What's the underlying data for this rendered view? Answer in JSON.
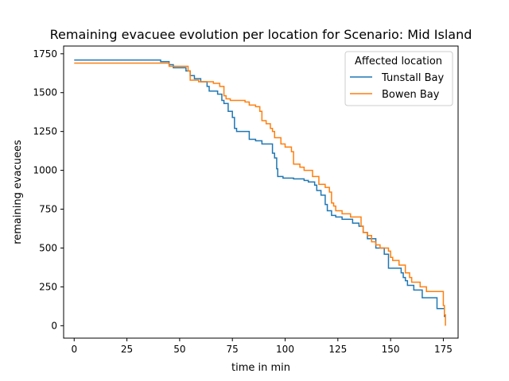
{
  "chart_data": {
    "type": "line",
    "title": "Remaining evacuee evolution per location for Scenario: Mid Island",
    "xlabel": "time in min",
    "ylabel": "remaining evacuees",
    "xlim": [
      -5,
      182
    ],
    "ylim": [
      -80,
      1800
    ],
    "xticks": [
      0,
      25,
      50,
      75,
      100,
      125,
      150,
      175
    ],
    "yticks": [
      0,
      250,
      500,
      750,
      1000,
      1250,
      1500,
      1750
    ],
    "grid": false,
    "step": "post",
    "legend": {
      "title": "Affected location",
      "position": "top-right"
    },
    "series": [
      {
        "name": "Tunstall Bay",
        "color": "#1f77b4",
        "points": [
          [
            0,
            1710
          ],
          [
            41,
            1710
          ],
          [
            41,
            1700
          ],
          [
            45,
            1700
          ],
          [
            45,
            1680
          ],
          [
            47,
            1680
          ],
          [
            47,
            1660
          ],
          [
            53,
            1660
          ],
          [
            53,
            1640
          ],
          [
            55,
            1640
          ],
          [
            55,
            1610
          ],
          [
            57,
            1610
          ],
          [
            57,
            1590
          ],
          [
            60,
            1590
          ],
          [
            60,
            1570
          ],
          [
            63,
            1570
          ],
          [
            63,
            1540
          ],
          [
            64,
            1540
          ],
          [
            64,
            1510
          ],
          [
            68,
            1510
          ],
          [
            68,
            1490
          ],
          [
            70,
            1490
          ],
          [
            70,
            1450
          ],
          [
            71,
            1450
          ],
          [
            71,
            1430
          ],
          [
            73,
            1430
          ],
          [
            73,
            1380
          ],
          [
            75,
            1380
          ],
          [
            75,
            1340
          ],
          [
            76,
            1340
          ],
          [
            76,
            1270
          ],
          [
            77,
            1270
          ],
          [
            77,
            1250
          ],
          [
            83,
            1250
          ],
          [
            83,
            1200
          ],
          [
            86,
            1200
          ],
          [
            86,
            1190
          ],
          [
            89,
            1190
          ],
          [
            89,
            1170
          ],
          [
            94,
            1170
          ],
          [
            94,
            1110
          ],
          [
            95,
            1110
          ],
          [
            95,
            1080
          ],
          [
            96,
            1080
          ],
          [
            96,
            1010
          ],
          [
            96.5,
            1010
          ],
          [
            96.5,
            960
          ],
          [
            99,
            960
          ],
          [
            99,
            950
          ],
          [
            104,
            950
          ],
          [
            104,
            945
          ],
          [
            109,
            945
          ],
          [
            109,
            935
          ],
          [
            111,
            935
          ],
          [
            111,
            925
          ],
          [
            114,
            925
          ],
          [
            114,
            905
          ],
          [
            115,
            905
          ],
          [
            115,
            870
          ],
          [
            117,
            870
          ],
          [
            117,
            840
          ],
          [
            119,
            840
          ],
          [
            119,
            780
          ],
          [
            120,
            780
          ],
          [
            120,
            740
          ],
          [
            122,
            740
          ],
          [
            122,
            710
          ],
          [
            124,
            710
          ],
          [
            124,
            700
          ],
          [
            127,
            700
          ],
          [
            127,
            685
          ],
          [
            132,
            685
          ],
          [
            132,
            660
          ],
          [
            135,
            660
          ],
          [
            135,
            640
          ],
          [
            137,
            640
          ],
          [
            137,
            600
          ],
          [
            139,
            600
          ],
          [
            139,
            560
          ],
          [
            143,
            560
          ],
          [
            143,
            500
          ],
          [
            147,
            500
          ],
          [
            147,
            460
          ],
          [
            149,
            460
          ],
          [
            149,
            370
          ],
          [
            155,
            370
          ],
          [
            155,
            340
          ],
          [
            156,
            340
          ],
          [
            156,
            310
          ],
          [
            157,
            310
          ],
          [
            157,
            290
          ],
          [
            158,
            290
          ],
          [
            158,
            260
          ],
          [
            161,
            260
          ],
          [
            161,
            230
          ],
          [
            165,
            230
          ],
          [
            165,
            180
          ],
          [
            172,
            180
          ],
          [
            172,
            110
          ],
          [
            175.5,
            110
          ],
          [
            175.5,
            60
          ],
          [
            176,
            60
          ]
        ]
      },
      {
        "name": "Bowen Bay",
        "color": "#ff7f0e",
        "points": [
          [
            0,
            1690
          ],
          [
            45,
            1690
          ],
          [
            45,
            1670
          ],
          [
            54,
            1670
          ],
          [
            54,
            1640
          ],
          [
            55,
            1640
          ],
          [
            55,
            1580
          ],
          [
            59,
            1580
          ],
          [
            59,
            1570
          ],
          [
            66,
            1570
          ],
          [
            66,
            1560
          ],
          [
            69,
            1560
          ],
          [
            69,
            1540
          ],
          [
            71,
            1540
          ],
          [
            71,
            1480
          ],
          [
            72,
            1480
          ],
          [
            72,
            1460
          ],
          [
            74,
            1460
          ],
          [
            74,
            1450
          ],
          [
            81,
            1450
          ],
          [
            81,
            1440
          ],
          [
            83,
            1440
          ],
          [
            83,
            1420
          ],
          [
            86,
            1420
          ],
          [
            86,
            1410
          ],
          [
            88,
            1410
          ],
          [
            88,
            1380
          ],
          [
            89,
            1380
          ],
          [
            89,
            1320
          ],
          [
            91,
            1320
          ],
          [
            91,
            1300
          ],
          [
            93,
            1300
          ],
          [
            93,
            1270
          ],
          [
            94,
            1270
          ],
          [
            94,
            1250
          ],
          [
            95,
            1250
          ],
          [
            95,
            1210
          ],
          [
            98,
            1210
          ],
          [
            98,
            1170
          ],
          [
            100,
            1170
          ],
          [
            100,
            1150
          ],
          [
            103,
            1150
          ],
          [
            103,
            1120
          ],
          [
            104,
            1120
          ],
          [
            104,
            1040
          ],
          [
            107,
            1040
          ],
          [
            107,
            1020
          ],
          [
            109,
            1020
          ],
          [
            109,
            1000
          ],
          [
            113,
            1000
          ],
          [
            113,
            960
          ],
          [
            116,
            960
          ],
          [
            116,
            910
          ],
          [
            119,
            910
          ],
          [
            119,
            890
          ],
          [
            121,
            890
          ],
          [
            121,
            860
          ],
          [
            122,
            860
          ],
          [
            122,
            790
          ],
          [
            123,
            790
          ],
          [
            123,
            770
          ],
          [
            124,
            770
          ],
          [
            124,
            740
          ],
          [
            127,
            740
          ],
          [
            127,
            720
          ],
          [
            131,
            720
          ],
          [
            131,
            700
          ],
          [
            136,
            700
          ],
          [
            136,
            640
          ],
          [
            137,
            640
          ],
          [
            137,
            600
          ],
          [
            139,
            600
          ],
          [
            139,
            580
          ],
          [
            141,
            580
          ],
          [
            141,
            540
          ],
          [
            143,
            540
          ],
          [
            143,
            520
          ],
          [
            145,
            520
          ],
          [
            145,
            500
          ],
          [
            149,
            500
          ],
          [
            149,
            480
          ],
          [
            150,
            480
          ],
          [
            150,
            440
          ],
          [
            151,
            440
          ],
          [
            151,
            420
          ],
          [
            154,
            420
          ],
          [
            154,
            390
          ],
          [
            157,
            390
          ],
          [
            157,
            340
          ],
          [
            159,
            340
          ],
          [
            159,
            310
          ],
          [
            160,
            310
          ],
          [
            160,
            280
          ],
          [
            164,
            280
          ],
          [
            164,
            250
          ],
          [
            167,
            250
          ],
          [
            167,
            220
          ],
          [
            175,
            220
          ],
          [
            175,
            130
          ],
          [
            175.5,
            130
          ],
          [
            175.5,
            70
          ],
          [
            176,
            70
          ],
          [
            176,
            0
          ]
        ]
      }
    ]
  }
}
